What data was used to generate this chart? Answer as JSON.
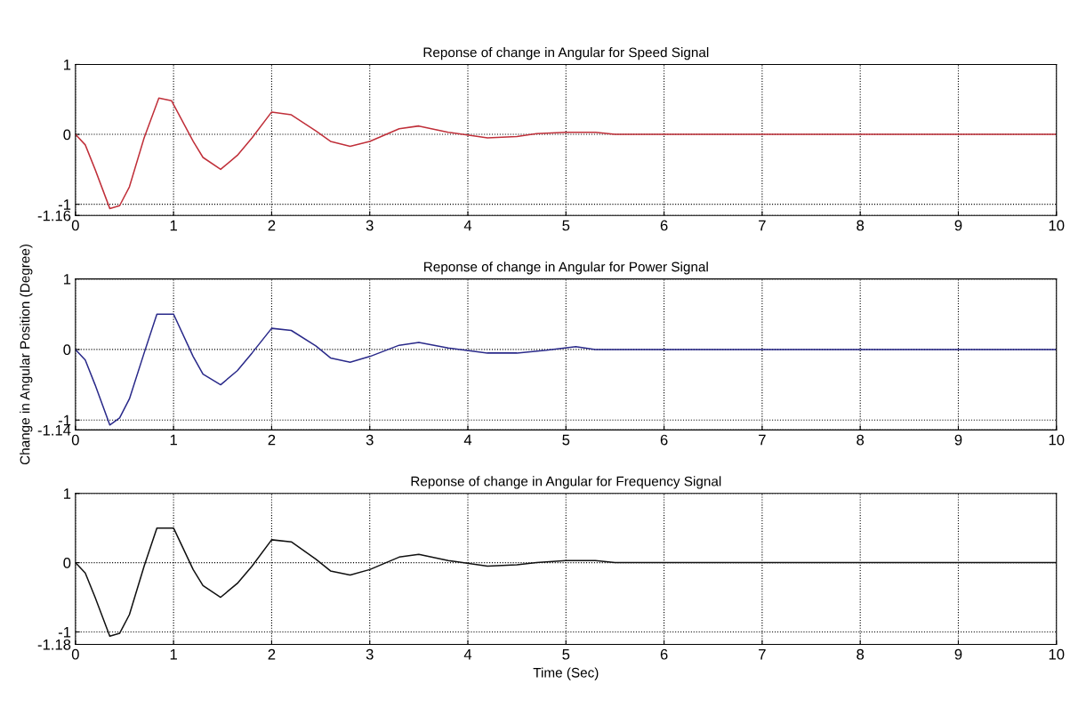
{
  "chart_data": [
    {
      "type": "line",
      "title": "Reponse of change in Angular for Speed Signal",
      "xlim": [
        0,
        10
      ],
      "ylim": [
        -1.16,
        1
      ],
      "xticks": [
        0,
        1,
        2,
        3,
        4,
        5,
        6,
        7,
        8,
        9,
        10
      ],
      "yticks": [
        -1.16,
        -1,
        0,
        1
      ],
      "grid": true,
      "line_style": "solid",
      "series": [
        {
          "color": "#c0303a",
          "x": [
            0,
            0.1,
            0.2,
            0.35,
            0.45,
            0.55,
            0.7,
            0.85,
            0.98,
            1.2,
            1.3,
            1.48,
            1.65,
            1.8,
            2.0,
            2.2,
            2.45,
            2.6,
            2.8,
            3.0,
            3.3,
            3.5,
            3.8,
            4.2,
            4.5,
            4.7,
            5.0,
            5.3,
            5.5,
            10
          ],
          "values": [
            0,
            -0.15,
            -0.5,
            -1.06,
            -1.02,
            -0.75,
            -0.05,
            0.52,
            0.48,
            -0.1,
            -0.33,
            -0.5,
            -0.3,
            -0.05,
            0.32,
            0.28,
            0.05,
            -0.1,
            -0.17,
            -0.1,
            0.08,
            0.12,
            0.03,
            -0.05,
            -0.03,
            0.01,
            0.03,
            0.03,
            0,
            0
          ]
        }
      ]
    },
    {
      "type": "line",
      "title": "Reponse of change in Angular for Power Signal",
      "ylabel": "Change in Angular Position (Degree)",
      "xlim": [
        0,
        10
      ],
      "ylim": [
        -1.14,
        1
      ],
      "xticks": [
        0,
        1,
        2,
        3,
        4,
        5,
        6,
        7,
        8,
        9,
        10
      ],
      "yticks": [
        -1.14,
        -1,
        0,
        1
      ],
      "grid": true,
      "line_style": "solid",
      "series": [
        {
          "color": "#2a2a8a",
          "x": [
            0,
            0.1,
            0.2,
            0.35,
            0.45,
            0.55,
            0.7,
            0.83,
            1.0,
            1.2,
            1.3,
            1.48,
            1.65,
            1.8,
            2.0,
            2.2,
            2.45,
            2.6,
            2.8,
            3.0,
            3.3,
            3.5,
            3.8,
            4.2,
            4.5,
            4.8,
            5.1,
            5.3,
            10
          ],
          "values": [
            0,
            -0.15,
            -0.5,
            -1.07,
            -0.97,
            -0.7,
            -0.05,
            0.5,
            0.5,
            -0.1,
            -0.35,
            -0.5,
            -0.3,
            -0.05,
            0.3,
            0.27,
            0.05,
            -0.12,
            -0.18,
            -0.1,
            0.06,
            0.1,
            0.02,
            -0.05,
            -0.05,
            -0.01,
            0.04,
            0,
            0
          ]
        }
      ]
    },
    {
      "type": "line",
      "title": "Reponse of change in Angular for Frequency Signal",
      "xlabel": "Time (Sec)",
      "xlim": [
        0,
        10
      ],
      "ylim": [
        -1.18,
        1
      ],
      "xticks": [
        0,
        1,
        2,
        3,
        4,
        5,
        6,
        7,
        8,
        9,
        10
      ],
      "yticks": [
        -1.18,
        -1,
        0,
        1
      ],
      "grid": true,
      "line_style": "solid",
      "series": [
        {
          "color": "#111111",
          "x": [
            0,
            0.1,
            0.2,
            0.35,
            0.45,
            0.55,
            0.7,
            0.83,
            1.0,
            1.2,
            1.3,
            1.48,
            1.65,
            1.8,
            2.0,
            2.2,
            2.45,
            2.6,
            2.8,
            3.0,
            3.3,
            3.5,
            3.8,
            4.2,
            4.5,
            4.7,
            5.0,
            5.3,
            5.5,
            10
          ],
          "values": [
            0,
            -0.15,
            -0.5,
            -1.06,
            -1.02,
            -0.75,
            -0.05,
            0.5,
            0.5,
            -0.1,
            -0.33,
            -0.5,
            -0.3,
            -0.05,
            0.33,
            0.3,
            0.05,
            -0.12,
            -0.18,
            -0.1,
            0.08,
            0.12,
            0.03,
            -0.05,
            -0.03,
            0,
            0.03,
            0.03,
            0,
            0
          ]
        }
      ]
    }
  ]
}
